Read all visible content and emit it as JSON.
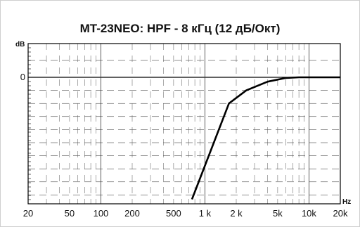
{
  "chart_data": {
    "type": "line",
    "title": "MT-23NEO: HPF - 8 кГц (12 дБ/Окт)",
    "xlabel": "Hz",
    "ylabel": "dB",
    "xscale": "log",
    "xlim": [
      20,
      20000
    ],
    "x_ticks": [
      {
        "value": 20,
        "label": "20"
      },
      {
        "value": 50,
        "label": "50"
      },
      {
        "value": 100,
        "label": "100"
      },
      {
        "value": 200,
        "label": "200"
      },
      {
        "value": 500,
        "label": "500"
      },
      {
        "value": 1000,
        "label": "1 k"
      },
      {
        "value": 2000,
        "label": "2 k"
      },
      {
        "value": 5000,
        "label": "5k"
      },
      {
        "value": 10000,
        "label": "10k"
      },
      {
        "value": 20000,
        "label": "20k"
      }
    ],
    "y_ticks": [
      {
        "value": 0,
        "label": "0"
      }
    ],
    "grid": true,
    "series": [
      {
        "x": [
          750,
          1700,
          2500,
          4000,
          6000,
          8000,
          20000
        ],
        "y": [
          -56,
          -12,
          -6,
          -2,
          -0.3,
          0,
          0
        ]
      }
    ]
  }
}
